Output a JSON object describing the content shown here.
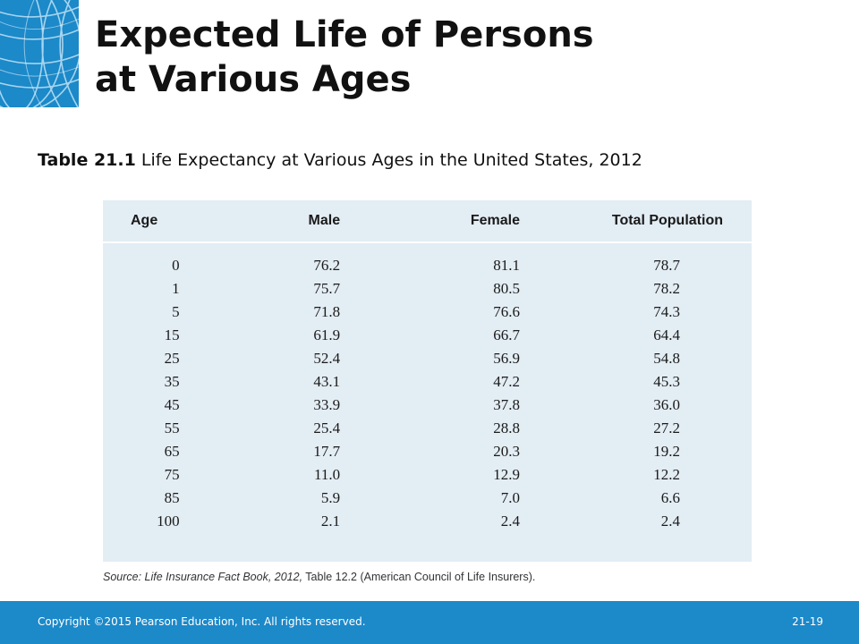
{
  "slide": {
    "title_line1": "Expected Life of Persons",
    "title_line2": "at Various Ages"
  },
  "caption": {
    "label": "Table 21.1",
    "text": " Life Expectancy at Various Ages in the United States, 2012"
  },
  "table": {
    "headers": [
      "Age",
      "Male",
      "Female",
      "Total Population"
    ],
    "rows": [
      [
        "0",
        "76.2",
        "81.1",
        "78.7"
      ],
      [
        "1",
        "75.7",
        "80.5",
        "78.2"
      ],
      [
        "5",
        "71.8",
        "76.6",
        "74.3"
      ],
      [
        "15",
        "61.9",
        "66.7",
        "64.4"
      ],
      [
        "25",
        "52.4",
        "56.9",
        "54.8"
      ],
      [
        "35",
        "43.1",
        "47.2",
        "45.3"
      ],
      [
        "45",
        "33.9",
        "37.8",
        "36.0"
      ],
      [
        "55",
        "25.4",
        "28.8",
        "27.2"
      ],
      [
        "65",
        "17.7",
        "20.3",
        "19.2"
      ],
      [
        "75",
        "11.0",
        "12.9",
        "12.2"
      ],
      [
        "85",
        "5.9",
        "7.0",
        "6.6"
      ],
      [
        "100",
        "2.1",
        "2.4",
        "2.4"
      ]
    ]
  },
  "source": {
    "prefix": "Source: Life Insurance Fact Book, 2012,",
    "suffix": " Table 12.2 (American Council of Life Insurers)."
  },
  "footer": {
    "copyright": "Copyright ©2015 Pearson Education, Inc. All rights reserved.",
    "slide_number": "21-19"
  },
  "colors": {
    "brand_blue": "#1c89c9",
    "table_background": "#e3edf4"
  },
  "icons": {
    "logo": "globe-lines-icon"
  }
}
